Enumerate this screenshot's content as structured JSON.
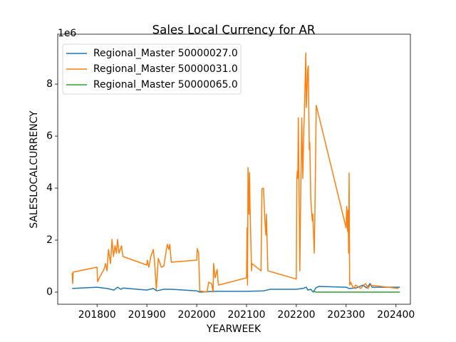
{
  "chart_data": {
    "type": "line",
    "title": "Sales Local Currency for AR",
    "x_label": "YEARWEEK",
    "y_label": "SALESLOCALCURRENCY",
    "y_offset_label": "1e6",
    "xlim": [
      201721,
      202429
    ],
    "ylim": [
      -0.466,
      9.92
    ],
    "xticks": [
      201800,
      201900,
      202000,
      202100,
      202200,
      202300,
      202400
    ],
    "yticks": [
      0,
      2,
      4,
      6,
      8
    ],
    "legend": "upper left",
    "series": [
      {
        "name": "Regional_Master 50000027.0",
        "color": "#1f77b4",
        "x": [
          201750,
          201800,
          201820,
          201834,
          201841,
          201848,
          201852,
          201900,
          201906,
          201913,
          201920,
          201934,
          201948,
          202000,
          202006,
          202034,
          202048,
          202100,
          202134,
          202148,
          202200,
          202213,
          202220,
          202223,
          202229,
          202234,
          202239,
          202245,
          202300,
          202306,
          202320,
          202334,
          202341,
          202348,
          202352,
          202400,
          202408
        ],
        "values": [
          0.14,
          0.19,
          0.14,
          0.08,
          0.19,
          0.11,
          0.16,
          0.08,
          0.11,
          0.14,
          0.05,
          0.11,
          0.11,
          0.05,
          0.0,
          0.03,
          0.03,
          0.03,
          0.05,
          0.11,
          0.11,
          0.14,
          0.19,
          0.08,
          0.11,
          0.0,
          0.16,
          0.22,
          0.19,
          0.14,
          0.16,
          0.27,
          0.16,
          0.33,
          0.19,
          0.19,
          0.19
        ]
      },
      {
        "name": "Regional_Master 50000031.0",
        "color": "#ff7f0e",
        "x": [
          201750,
          201751,
          201752,
          201800,
          201801,
          201806,
          201814,
          201817,
          201820,
          201823,
          201827,
          201830,
          201833,
          201836,
          201839,
          201841,
          201844,
          201849,
          201852,
          201900,
          201901,
          201904,
          201908,
          201913,
          201916,
          201919,
          201923,
          201929,
          201934,
          201941,
          201944,
          201946,
          201949,
          202000,
          202001,
          202004,
          202006,
          202021,
          202024,
          202030,
          202033,
          202034,
          202037,
          202041,
          202043,
          202044,
          202100,
          202101,
          202102,
          202103,
          202105,
          202106,
          202107,
          202108,
          202110,
          202111,
          202129,
          202130,
          202131,
          202134,
          202137,
          202139,
          202140,
          202143,
          202200,
          202201,
          202202,
          202203,
          202204,
          202206,
          202207,
          202209,
          202211,
          202213,
          202215,
          202216,
          202219,
          202220,
          202223,
          202224,
          202226,
          202227,
          202229,
          202232,
          202233,
          202236,
          202237,
          202240,
          202300,
          202301,
          202302,
          202303,
          202304,
          202305,
          202306,
          202307,
          202309,
          202315,
          202319,
          202329,
          202336,
          202339,
          202344,
          202348,
          202405
        ],
        "values": [
          0.74,
          0.33,
          0.77,
          0.96,
          0.4,
          0.6,
          0.88,
          1.1,
          0.82,
          1.64,
          1.1,
          2.03,
          1.37,
          1.78,
          1.5,
          2.03,
          1.5,
          1.78,
          1.37,
          1.04,
          1.23,
          0.96,
          1.37,
          1.64,
          1.04,
          0.1,
          1.3,
          0.96,
          1.0,
          1.84,
          1.64,
          1.84,
          1.15,
          1.23,
          1.67,
          1.5,
          0.05,
          0.0,
          0.38,
          0.33,
          0.0,
          1.1,
          0.55,
          0.87,
          0.38,
          0.27,
          0.55,
          2.47,
          0.27,
          4.79,
          3.0,
          4.6,
          3.3,
          2.5,
          0.82,
          1.1,
          0.82,
          2.33,
          3.97,
          4.0,
          2.74,
          2.19,
          3.0,
          0.82,
          0.5,
          4.38,
          4.66,
          4.38,
          6.7,
          3.0,
          0.82,
          4.11,
          6.7,
          4.38,
          6.3,
          6.7,
          9.2,
          7.1,
          8.6,
          8.7,
          5.48,
          5.75,
          3.56,
          2.74,
          3.0,
          1.5,
          2.74,
          7.18,
          2.47,
          3.3,
          3.0,
          2.33,
          3.15,
          1.5,
          4.58,
          0.27,
          0.38,
          0.14,
          0.27,
          0.14,
          0.27,
          0.33,
          0.14,
          0.27,
          0.14
        ]
      },
      {
        "name": "Regional_Master 50000065.0",
        "color": "#2ca02c",
        "x": [
          202234,
          202235,
          202240,
          202300,
          202352,
          202408
        ],
        "values": [
          0.0,
          0.03,
          0.0,
          0.0,
          0.0,
          0.0
        ]
      }
    ]
  }
}
